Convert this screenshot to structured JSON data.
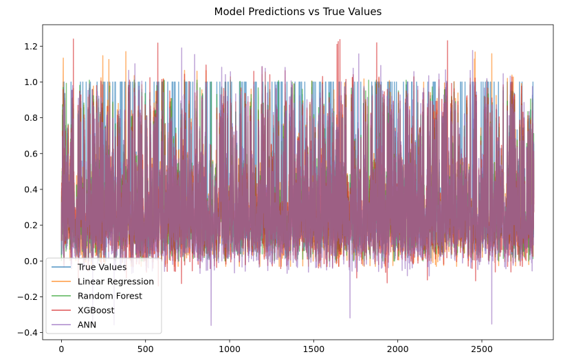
{
  "chart_data": {
    "type": "line",
    "title": "Model Predictions vs True Values",
    "xlabel": "",
    "ylabel": "",
    "xlim": [
      -112,
      2925
    ],
    "ylim": [
      -0.44,
      1.32
    ],
    "x_ticks": [
      0,
      500,
      1000,
      1500,
      2000,
      2500
    ],
    "x_tick_labels": [
      "0",
      "500",
      "1000",
      "1500",
      "2000",
      "2500"
    ],
    "y_ticks": [
      -0.4,
      -0.2,
      0.0,
      0.2,
      0.4,
      0.6,
      0.8,
      1.0,
      1.2
    ],
    "y_tick_labels": [
      "−0.4",
      "−0.2",
      "0.0",
      "0.2",
      "0.4",
      "0.6",
      "0.8",
      "1.0",
      "1.2"
    ],
    "grid": false,
    "legend_position": "lower-left",
    "n_points": 2810,
    "series": [
      {
        "name": "True Values",
        "color": "#1f77b4",
        "opacity": 0.6,
        "value_range": [
          0.0,
          1.0
        ]
      },
      {
        "name": "Linear Regression",
        "color": "#ff7f0e",
        "opacity": 0.6,
        "value_range": [
          -0.03,
          1.17
        ]
      },
      {
        "name": "Random Forest",
        "color": "#2ca02c",
        "opacity": 0.6,
        "value_range": [
          0.0,
          1.01
        ]
      },
      {
        "name": "XGBoost",
        "color": "#d62728",
        "opacity": 0.6,
        "value_range": [
          -0.14,
          1.24
        ]
      },
      {
        "name": "ANN",
        "color": "#9467bd",
        "opacity": 0.6,
        "value_range": [
          -0.36,
          1.19
        ]
      }
    ]
  }
}
